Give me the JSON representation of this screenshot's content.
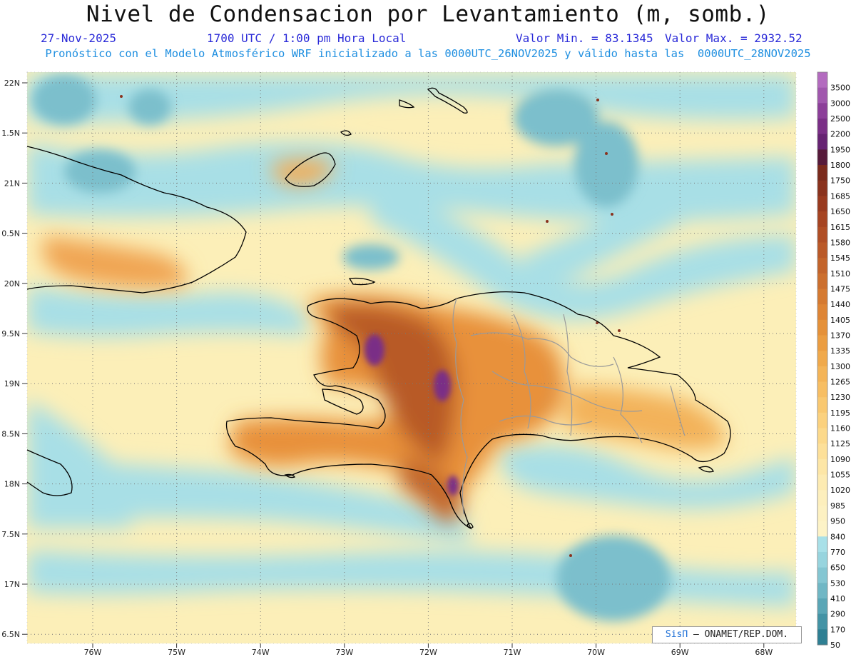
{
  "title": "Nivel de Condensacion por Levantamiento (m, somb.)",
  "date": "27-Nov-2025",
  "time": "1700 UTC / 1:00 pm Hora Local",
  "min_label": "Valor Min. = 83.1345",
  "max_label": "Valor Max. = 2932.52",
  "forecast_note": "Pronóstico con el Modelo Atmosférico WRF inicializado a las 0000UTC_26NOV2025 y válido hasta las  0000UTC_28NOV2025",
  "credit": {
    "brand": "SisΠ",
    "text": "– ONAMET/REP.DOM."
  },
  "axes": {
    "lat_ticks": [
      "22N",
      "1.5N",
      "21N",
      "0.5N",
      "20N",
      "9.5N",
      "19N",
      "8.5N",
      "18N",
      "7.5N",
      "17N",
      "6.5N"
    ],
    "lon_ticks": [
      "76W",
      "75W",
      "74W",
      "73W",
      "72W",
      "71W",
      "70W",
      "69W",
      "68W"
    ],
    "lat_range": [
      16.4,
      22.1
    ],
    "lon_range": [
      -76.8,
      -67.6
    ]
  },
  "colorbar": {
    "levels": [
      {
        "label": "3500",
        "color": "#b36bbf"
      },
      {
        "label": "3000",
        "color": "#a057ad"
      },
      {
        "label": "2500",
        "color": "#8c3f99"
      },
      {
        "label": "2200",
        "color": "#7a2f86"
      },
      {
        "label": "1950",
        "color": "#662372"
      },
      {
        "label": "1800",
        "color": "#561a3a"
      },
      {
        "label": "1750",
        "color": "#7a2a1c"
      },
      {
        "label": "1685",
        "color": "#8a321d"
      },
      {
        "label": "1650",
        "color": "#993a1f"
      },
      {
        "label": "1615",
        "color": "#a64422"
      },
      {
        "label": "1580",
        "color": "#b04e25"
      },
      {
        "label": "1545",
        "color": "#ba5928"
      },
      {
        "label": "1510",
        "color": "#c3642b"
      },
      {
        "label": "1475",
        "color": "#cc6f2e"
      },
      {
        "label": "1440",
        "color": "#d57a31"
      },
      {
        "label": "1405",
        "color": "#de8535"
      },
      {
        "label": "1370",
        "color": "#e59139"
      },
      {
        "label": "1335",
        "color": "#eb9d41"
      },
      {
        "label": "1300",
        "color": "#f0a94b"
      },
      {
        "label": "1265",
        "color": "#f4b457"
      },
      {
        "label": "1230",
        "color": "#f7be63"
      },
      {
        "label": "1195",
        "color": "#f9c870"
      },
      {
        "label": "1160",
        "color": "#fbd17e"
      },
      {
        "label": "1125",
        "color": "#fcd98b"
      },
      {
        "label": "1090",
        "color": "#fde099"
      },
      {
        "label": "1055",
        "color": "#fde6a6"
      },
      {
        "label": "1020",
        "color": "#fdebb2"
      },
      {
        "label": "985",
        "color": "#fdefbd"
      },
      {
        "label": "950",
        "color": "#fdf1c2"
      },
      {
        "label": "840",
        "color": "#fdf3c7"
      },
      {
        "label": "770",
        "color": "#a8e0e8"
      },
      {
        "label": "650",
        "color": "#97d4de"
      },
      {
        "label": "530",
        "color": "#84c6d2"
      },
      {
        "label": "410",
        "color": "#70b7c5"
      },
      {
        "label": "290",
        "color": "#5aa6b6"
      },
      {
        "label": "170",
        "color": "#4393a5"
      },
      {
        "label": "50",
        "color": "#2e7f93"
      }
    ]
  }
}
